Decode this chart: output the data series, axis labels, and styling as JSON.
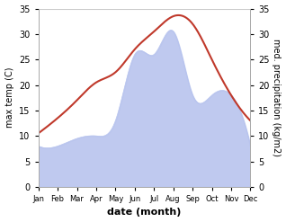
{
  "months": [
    "Jan",
    "Feb",
    "Mar",
    "Apr",
    "May",
    "Jun",
    "Jul",
    "Aug",
    "Sep",
    "Oct",
    "Nov",
    "Dec"
  ],
  "temperature": [
    10.5,
    13.5,
    17.0,
    20.5,
    22.5,
    27.0,
    30.5,
    33.5,
    32.0,
    25.0,
    18.0,
    13.0
  ],
  "precipitation": [
    8.0,
    8.0,
    9.5,
    10.0,
    13.0,
    26.0,
    26.0,
    30.5,
    18.0,
    18.0,
    18.0,
    8.0
  ],
  "temp_color": "#c0392b",
  "precip_color": "#b8c4ee",
  "ylabel_left": "max temp (C)",
  "ylabel_right": "med. precipitation (kg/m2)",
  "xlabel": "date (month)",
  "ylim": [
    0,
    35
  ],
  "yticks": [
    0,
    5,
    10,
    15,
    20,
    25,
    30,
    35
  ],
  "bg_color": "#ffffff",
  "spine_color": "#aaaaaa",
  "top_line_color": "#cccccc"
}
